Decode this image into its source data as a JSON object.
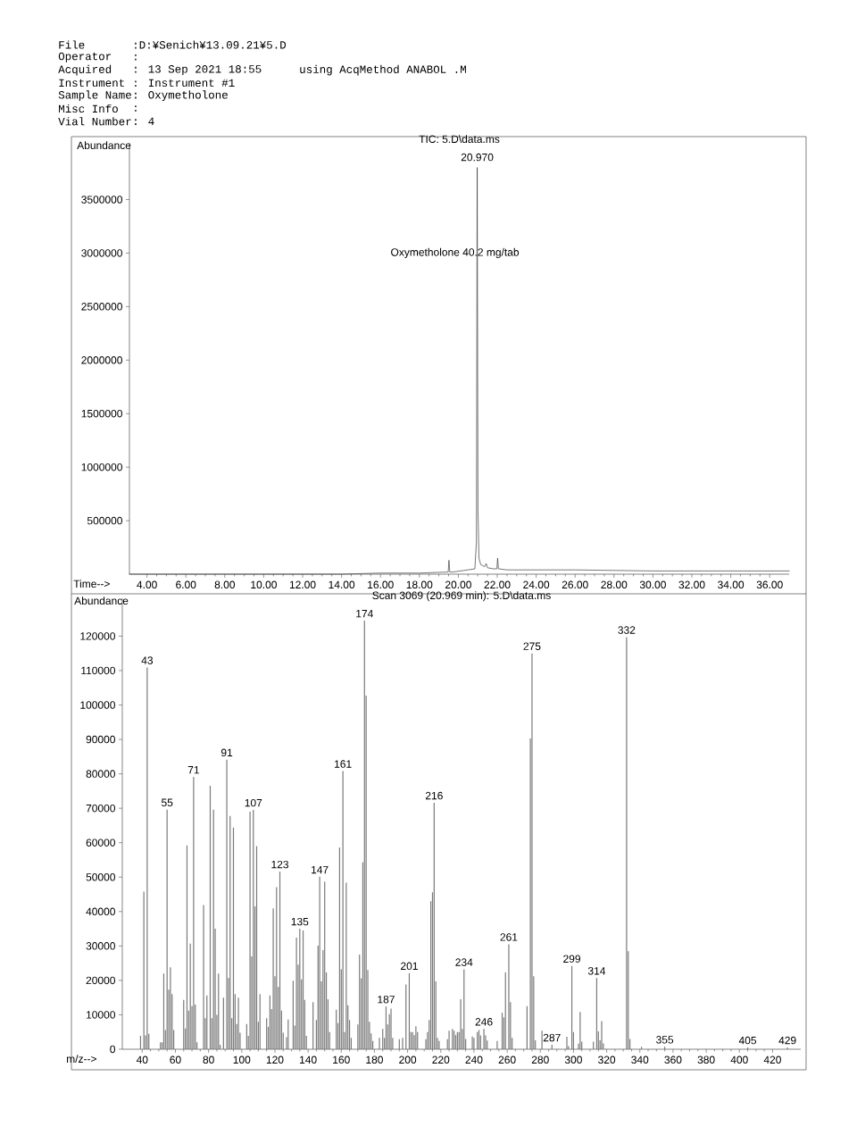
{
  "chart_data": [
    {
      "type": "line",
      "title": "TIC: 5.D\\data.ms",
      "xlabel": "Time-->",
      "ylabel": "Abundance",
      "x": [
        3.1,
        14.0,
        16.0,
        18.0,
        19.4,
        19.48,
        19.52,
        19.56,
        19.7,
        20.5,
        20.85,
        20.93,
        20.97,
        21.01,
        21.06,
        21.15,
        21.35,
        21.43,
        21.5,
        21.8,
        21.98,
        22.02,
        22.06,
        22.5,
        26.0,
        30.0,
        37.0
      ],
      "values": [
        0,
        0,
        10000,
        10000,
        20000,
        20000,
        130000,
        20000,
        20000,
        40000,
        50000,
        300000,
        3800000,
        600000,
        150000,
        90000,
        70000,
        100000,
        60000,
        50000,
        50000,
        150000,
        50000,
        40000,
        40000,
        30000,
        30000
      ],
      "color": "#3c3c3c",
      "xlim": [
        3.1,
        37.0
      ],
      "ylim": [
        0,
        4030000
      ],
      "xticks": [
        {
          "value": 4,
          "label": "4.00"
        },
        {
          "value": 6,
          "label": "6.00"
        },
        {
          "value": 8,
          "label": "8.00"
        },
        {
          "value": 10,
          "label": "10.00"
        },
        {
          "value": 12,
          "label": "12.00"
        },
        {
          "value": 14,
          "label": "14.00"
        },
        {
          "value": 16,
          "label": "16.00"
        },
        {
          "value": 18,
          "label": "18.00"
        },
        {
          "value": 20,
          "label": "20.00"
        },
        {
          "value": 22,
          "label": "22.00"
        },
        {
          "value": 24,
          "label": "24.00"
        },
        {
          "value": 26,
          "label": "26.00"
        },
        {
          "value": 28,
          "label": "28.00"
        },
        {
          "value": 30,
          "label": "30.00"
        },
        {
          "value": 32,
          "label": "32.00"
        },
        {
          "value": 34,
          "label": "34.00"
        },
        {
          "value": 36,
          "label": "36.00"
        }
      ],
      "yticks": [
        500000,
        1000000,
        1500000,
        2000000,
        2500000,
        3000000,
        3500000
      ],
      "annotations": [
        "File",
        ":D:¥Senich¥13.09.21¥5.D",
        "Operator",
        ":",
        "Acquired",
        ": 13 Sep 2021 18:55",
        "using AcqMethod ANABOL .M",
        "Instrument",
        ": Instrument #1",
        "Sample Name",
        ": Oxymetholone",
        "Misc Info",
        ":",
        "Vial Number",
        ": 4",
        {
          "text": "20.970",
          "x": 20.97,
          "y": 3800000
        },
        {
          "text": "Oxymetholone 40.2 mg/tab",
          "x": 20.97,
          "y": 3000000
        }
      ]
    },
    {
      "type": "bar",
      "title": "Scan 3069 (20.969 min): 5.D\\data.ms",
      "xlabel": "m/z-->",
      "ylabel": "Abundance",
      "x": [
        39,
        41,
        42,
        43,
        44,
        51,
        52,
        53,
        54,
        55,
        56,
        57,
        58,
        59,
        65,
        66,
        67,
        68,
        69,
        70,
        71,
        72,
        73,
        77,
        78,
        79,
        81,
        82,
        83,
        84,
        85,
        86,
        87,
        89,
        91,
        92,
        93,
        94,
        95,
        96,
        97,
        98,
        99,
        103,
        104,
        105,
        106,
        107,
        108,
        109,
        110,
        111,
        115,
        116,
        117,
        118,
        119,
        120,
        121,
        122,
        123,
        124,
        125,
        127,
        128,
        131,
        132,
        133,
        134,
        135,
        136,
        137,
        138,
        139,
        143,
        145,
        146,
        147,
        148,
        149,
        150,
        151,
        152,
        153,
        157,
        158,
        159,
        160,
        161,
        162,
        163,
        164,
        165,
        166,
        170,
        171,
        172,
        173,
        174,
        175,
        176,
        177,
        178,
        179,
        183,
        185,
        186,
        187,
        188,
        189,
        190,
        191,
        195,
        197,
        199,
        201,
        202,
        203,
        204,
        205,
        206,
        211,
        212,
        213,
        214,
        215,
        216,
        217,
        218,
        219,
        224,
        225,
        227,
        228,
        229,
        230,
        231,
        232,
        233,
        234,
        235,
        239,
        240,
        242,
        243,
        244,
        246,
        247,
        248,
        254,
        257,
        258,
        259,
        261,
        262,
        263,
        272,
        274,
        275,
        276,
        277,
        281,
        287,
        296,
        297,
        299,
        300,
        303,
        304,
        305,
        312,
        314,
        315,
        316,
        317,
        318,
        332,
        333,
        334,
        341,
        355,
        405,
        429
      ],
      "values": [
        3900,
        45800,
        4000,
        110900,
        4500,
        2000,
        2000,
        22000,
        5600,
        69600,
        17300,
        23800,
        16000,
        5600,
        14300,
        6000,
        59200,
        11200,
        30700,
        12500,
        79100,
        13000,
        2000,
        41900,
        9000,
        15600,
        76500,
        9000,
        69600,
        35000,
        10000,
        22000,
        1300,
        15000,
        84100,
        20700,
        67800,
        9000,
        64400,
        16000,
        7300,
        15000,
        4800,
        7300,
        3900,
        69000,
        27000,
        69500,
        41500,
        59000,
        8000,
        16000,
        9000,
        6500,
        15600,
        11700,
        40900,
        21200,
        47100,
        18100,
        51600,
        11200,
        4800,
        3500,
        8600,
        19900,
        6900,
        32400,
        24600,
        35000,
        20300,
        34500,
        14300,
        3900,
        13700,
        8500,
        30100,
        50100,
        19700,
        28800,
        48700,
        22300,
        14500,
        5000,
        11500,
        7600,
        58600,
        23200,
        80800,
        5000,
        48400,
        12800,
        8500,
        3300,
        7200,
        27500,
        20600,
        54300,
        124500,
        102700,
        23000,
        8000,
        4600,
        2400,
        3300,
        5900,
        3300,
        12400,
        7200,
        10200,
        11800,
        3300,
        2900,
        3300,
        18800,
        22100,
        5000,
        5000,
        4100,
        6700,
        5000,
        2900,
        5000,
        8500,
        43000,
        45600,
        71600,
        19700,
        3300,
        2400,
        2900,
        5400,
        5900,
        5400,
        4100,
        5000,
        5000,
        14500,
        5900,
        23200,
        3000,
        3700,
        3300,
        5000,
        5600,
        4000,
        5900,
        4000,
        2500,
        2400,
        10600,
        9300,
        22300,
        30500,
        13700,
        3300,
        12500,
        90300,
        115000,
        21200,
        2600,
        5400,
        1300,
        3600,
        900,
        24200,
        5000,
        1600,
        10800,
        2200,
        2200,
        20700,
        5200,
        2600,
        8200,
        1700,
        119700,
        28500,
        3000,
        700,
        700,
        500,
        500
      ],
      "color": "#7a7a7a",
      "xlim": [
        28,
        437
      ],
      "ylim": [
        0,
        131000
      ],
      "xticks": [
        40,
        60,
        80,
        100,
        120,
        140,
        160,
        180,
        200,
        220,
        240,
        260,
        280,
        300,
        320,
        340,
        360,
        380,
        400,
        420
      ],
      "yticks": [
        0,
        10000,
        20000,
        30000,
        40000,
        50000,
        60000,
        70000,
        80000,
        90000,
        100000,
        110000,
        120000
      ],
      "annotations": [
        {
          "text": "43",
          "x": 43,
          "y": 110900
        },
        {
          "text": "55",
          "x": 55,
          "y": 69600
        },
        {
          "text": "71",
          "x": 71,
          "y": 79100
        },
        {
          "text": "91",
          "x": 91,
          "y": 84100
        },
        {
          "text": "107",
          "x": 107,
          "y": 69500
        },
        {
          "text": "123",
          "x": 123,
          "y": 51600
        },
        {
          "text": "135",
          "x": 135,
          "y": 35000
        },
        {
          "text": "147",
          "x": 147,
          "y": 50100
        },
        {
          "text": "161",
          "x": 161,
          "y": 80800
        },
        {
          "text": "174",
          "x": 174,
          "y": 124500
        },
        {
          "text": "187",
          "x": 187,
          "y": 12400
        },
        {
          "text": "201",
          "x": 201,
          "y": 22100
        },
        {
          "text": "216",
          "x": 216,
          "y": 71600
        },
        {
          "text": "234",
          "x": 234,
          "y": 23200
        },
        {
          "text": "246",
          "x": 246,
          "y": 5900
        },
        {
          "text": "261",
          "x": 261,
          "y": 30500
        },
        {
          "text": "275",
          "x": 275,
          "y": 115000
        },
        {
          "text": "287",
          "x": 287,
          "y": 1300
        },
        {
          "text": "299",
          "x": 299,
          "y": 24200
        },
        {
          "text": "314",
          "x": 314,
          "y": 20700
        },
        {
          "text": "332",
          "x": 332,
          "y": 119700
        },
        {
          "text": "355",
          "x": 355,
          "y": 700
        },
        {
          "text": "405",
          "x": 405,
          "y": 500
        },
        {
          "text": "429",
          "x": 429,
          "y": 500
        }
      ]
    }
  ]
}
